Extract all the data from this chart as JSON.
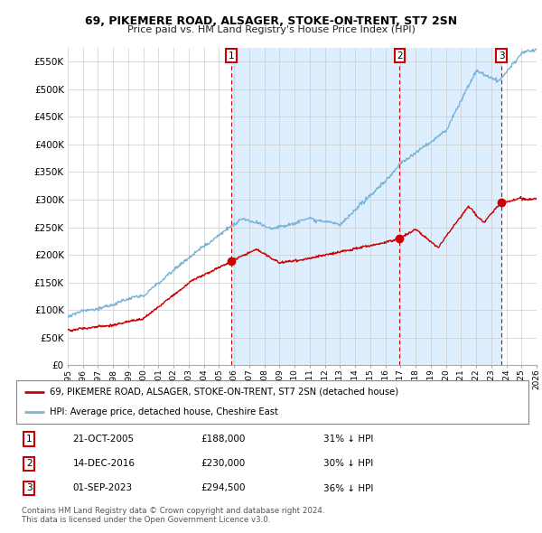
{
  "title": "69, PIKEMERE ROAD, ALSAGER, STOKE-ON-TRENT, ST7 2SN",
  "subtitle": "Price paid vs. HM Land Registry's House Price Index (HPI)",
  "xlim": [
    1995,
    2026
  ],
  "ylim": [
    0,
    575000
  ],
  "yticks": [
    0,
    50000,
    100000,
    150000,
    200000,
    250000,
    300000,
    350000,
    400000,
    450000,
    500000,
    550000
  ],
  "ytick_labels": [
    "£0",
    "£50K",
    "£100K",
    "£150K",
    "£200K",
    "£250K",
    "£300K",
    "£350K",
    "£400K",
    "£450K",
    "£500K",
    "£550K"
  ],
  "hpi_color": "#7ab4d8",
  "price_color": "#cc0000",
  "sale_marker_color": "#cc0000",
  "shade_color": "#ddeeff",
  "background_color": "#ffffff",
  "grid_color": "#cccccc",
  "sales": [
    {
      "num": 1,
      "date": "21-OCT-2005",
      "year": 2005.8,
      "price": 188000,
      "label": "31% ↓ HPI"
    },
    {
      "num": 2,
      "date": "14-DEC-2016",
      "year": 2016.95,
      "price": 230000,
      "label": "30% ↓ HPI"
    },
    {
      "num": 3,
      "date": "01-SEP-2023",
      "year": 2023.67,
      "price": 294500,
      "label": "36% ↓ HPI"
    }
  ],
  "legend_line1": "69, PIKEMERE ROAD, ALSAGER, STOKE-ON-TRENT, ST7 2SN (detached house)",
  "legend_line2": "HPI: Average price, detached house, Cheshire East",
  "footnote1": "Contains HM Land Registry data © Crown copyright and database right 2024.",
  "footnote2": "This data is licensed under the Open Government Licence v3.0."
}
